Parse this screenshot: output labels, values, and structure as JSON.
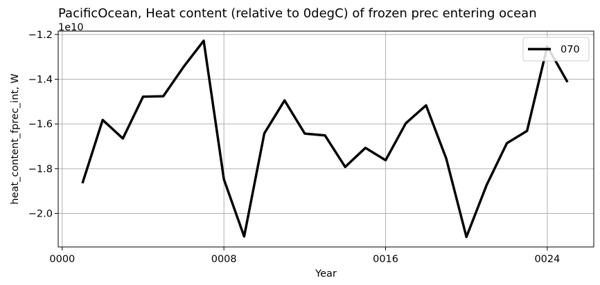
{
  "chart_data": {
    "type": "line",
    "title": "PacificOcean, Heat content (relative to 0degC) of frozen prec entering ocean",
    "xlabel": "Year",
    "ylabel": "heat_content_fprec_int, W",
    "y_offset_label": "1e10",
    "xlim": [
      -0.2,
      26.3
    ],
    "ylim": [
      -2.15,
      -1.185
    ],
    "x_ticks": [
      0,
      8,
      16,
      24
    ],
    "x_tick_labels": [
      "0000",
      "0008",
      "0016",
      "0024"
    ],
    "y_ticks": [
      -2.0,
      -1.8,
      -1.6,
      -1.4,
      -1.2
    ],
    "y_tick_labels": [
      "−2.0",
      "−1.8",
      "−1.6",
      "−1.4",
      "−1.2"
    ],
    "grid": true,
    "legend_position": "top-right",
    "series": [
      {
        "name": "070",
        "color": "#000000",
        "x": [
          1,
          2,
          3,
          4,
          5,
          6,
          7,
          8,
          9,
          10,
          11,
          12,
          13,
          14,
          15,
          16,
          17,
          18,
          19,
          20,
          21,
          22,
          23,
          24,
          25
        ],
        "values": [
          -1.865,
          -1.582,
          -1.665,
          -1.478,
          -1.476,
          -1.345,
          -1.228,
          -1.848,
          -2.103,
          -1.642,
          -1.495,
          -1.643,
          -1.651,
          -1.792,
          -1.707,
          -1.762,
          -1.597,
          -1.517,
          -1.755,
          -2.105,
          -1.873,
          -1.686,
          -1.631,
          -1.253,
          -1.413
        ]
      }
    ]
  }
}
